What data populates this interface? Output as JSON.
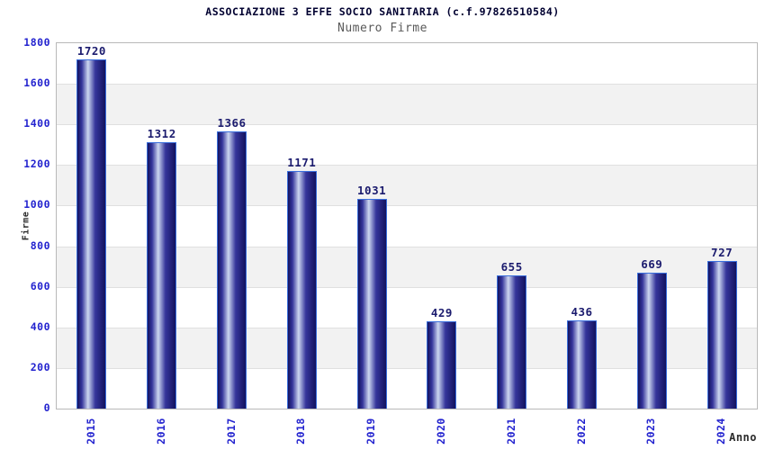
{
  "header": {
    "title": "ASSOCIAZIONE 3 EFFE SOCIO SANITARIA (c.f.97826510584)",
    "subtitle": "Numero Firme"
  },
  "chart_data": {
    "type": "bar",
    "title": "ASSOCIAZIONE 3 EFFE SOCIO SANITARIA (c.f.97826510584)",
    "subtitle": "Numero Firme",
    "categories": [
      "2015",
      "2016",
      "2017",
      "2018",
      "2019",
      "2020",
      "2021",
      "2022",
      "2023",
      "2024"
    ],
    "values": [
      1720,
      1312,
      1366,
      1171,
      1031,
      429,
      655,
      436,
      669,
      727
    ],
    "xlabel": "Anno",
    "ylabel": "Firme",
    "ylim": [
      0,
      1800
    ],
    "ytick_step": 200,
    "grid": true,
    "banded_background": true,
    "legend": "none"
  },
  "colors": {
    "title_color": "#000030",
    "subtitle_color": "#595959",
    "tick_label_blue": "#2323cf",
    "value_label_navy": "#1b1b6e",
    "axis_title_dark": "#2b2b2b",
    "band_gray": "#f2f2f2",
    "gridline": "#e0e0e0",
    "axis_border": "#b9b9b9",
    "bar_dark": "#13135f",
    "bar_mid": "#35359b",
    "bar_light": "#ccd6f0",
    "bar_border": "#3a6fdd"
  }
}
